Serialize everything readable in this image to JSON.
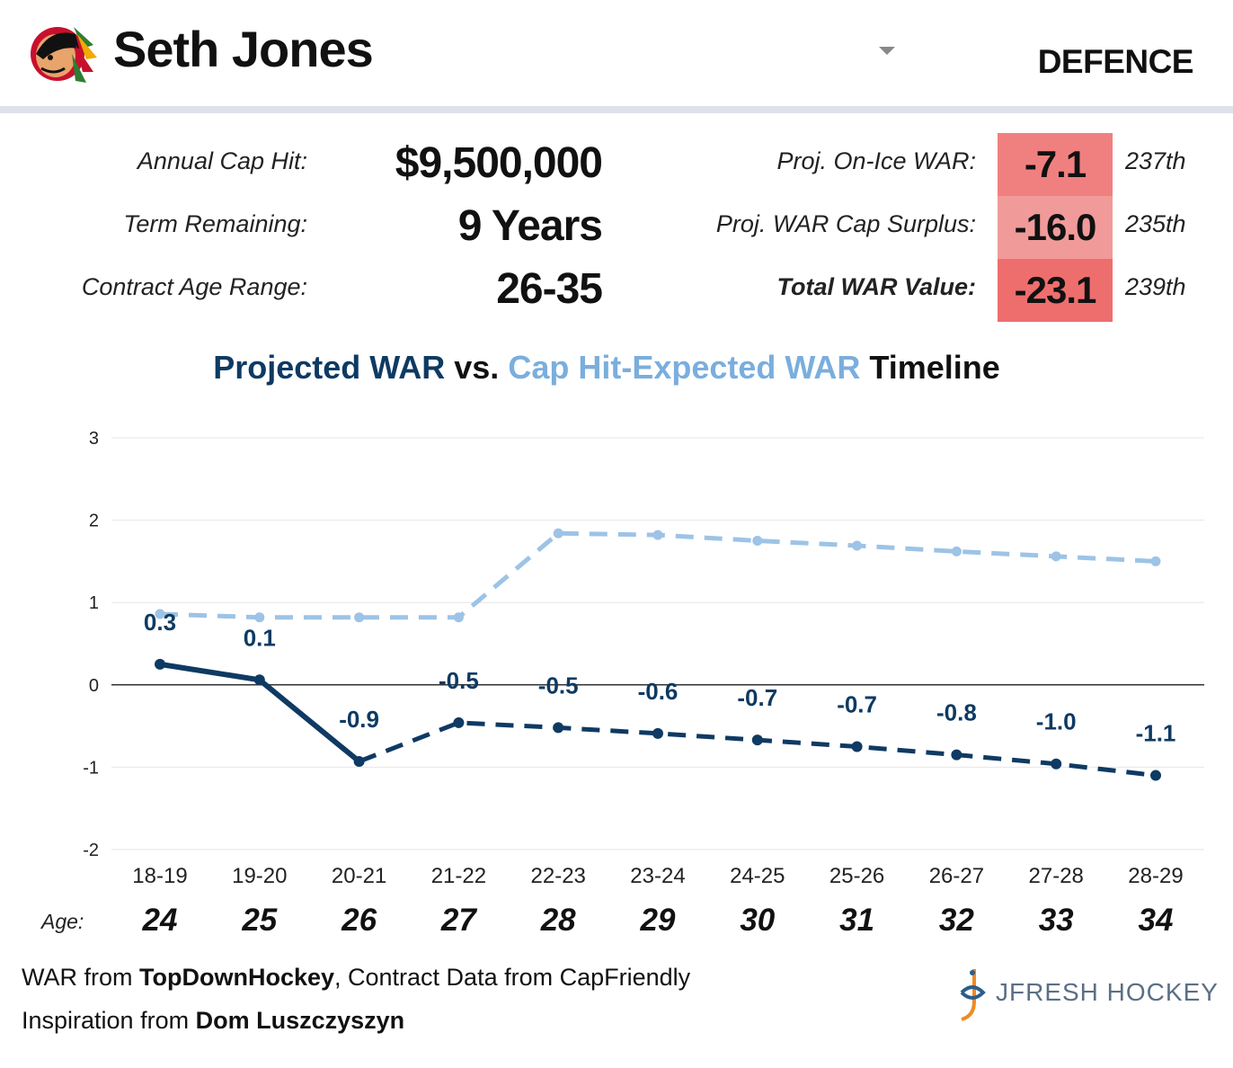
{
  "header": {
    "player_name": "Seth Jones",
    "position": "DEFENCE",
    "team_logo_icon": "chicago-blackhawks-logo-icon"
  },
  "contract": {
    "cap_hit_label": "Annual Cap Hit:",
    "cap_hit_value": "$9,500,000",
    "term_label": "Term Remaining:",
    "term_value": "9 Years",
    "age_range_label": "Contract Age Range:",
    "age_range_value": "26-35"
  },
  "war": {
    "onice_label": "Proj. On-Ice WAR:",
    "onice_value": "-7.1",
    "onice_rank": "237th",
    "surplus_label": "Proj. WAR Cap Surplus:",
    "surplus_value": "-16.0",
    "surplus_rank": "235th",
    "total_label": "Total WAR Value:",
    "total_value": "-23.1",
    "total_rank": "239th",
    "colors": {
      "onice": "#f08080",
      "surplus": "#f19a9a",
      "total": "#ee6e6e"
    }
  },
  "chart_title": {
    "part1": "Projected WAR",
    "part2": " vs. ",
    "part3": "Cap Hit-Expected WAR",
    "part4": " Timeline"
  },
  "chart_data": {
    "type": "line",
    "categories": [
      "18-19",
      "19-20",
      "20-21",
      "21-22",
      "22-23",
      "23-24",
      "24-25",
      "25-26",
      "26-27",
      "27-28",
      "28-29"
    ],
    "ylim": [
      -2,
      3
    ],
    "yticks": [
      -2,
      -1,
      0,
      1,
      2,
      3
    ],
    "grid": true,
    "series": [
      {
        "name": "Projected WAR",
        "color": "#0e3a63",
        "values": [
          0.25,
          0.06,
          -0.93,
          -0.46,
          -0.52,
          -0.59,
          -0.67,
          -0.75,
          -0.85,
          -0.96,
          -1.1
        ],
        "labels": [
          "0.3",
          "0.1",
          "-0.9",
          "-0.5",
          "-0.5",
          "-0.6",
          "-0.7",
          "-0.7",
          "-0.8",
          "-1.0",
          "-1.1"
        ],
        "actual_through_index": 2
      },
      {
        "name": "Cap Hit-Expected WAR",
        "color": "#9dc3e6",
        "values": [
          0.86,
          0.82,
          0.82,
          0.82,
          1.84,
          1.82,
          1.75,
          1.69,
          1.62,
          1.56,
          1.5
        ]
      }
    ]
  },
  "age": {
    "label": "Age:",
    "values": [
      "24",
      "25",
      "26",
      "27",
      "28",
      "29",
      "30",
      "31",
      "32",
      "33",
      "34"
    ]
  },
  "footer": {
    "line1_prefix": "WAR from ",
    "line1_bold": "TopDownHockey",
    "line1_suffix": ", Contract Data from CapFriendly",
    "line2_prefix": "Inspiration from ",
    "line2_bold": "Dom Luszczyszyn",
    "brand": "JFRESH HOCKEY",
    "brand_icon": "jfresh-hockey-logo-icon"
  }
}
